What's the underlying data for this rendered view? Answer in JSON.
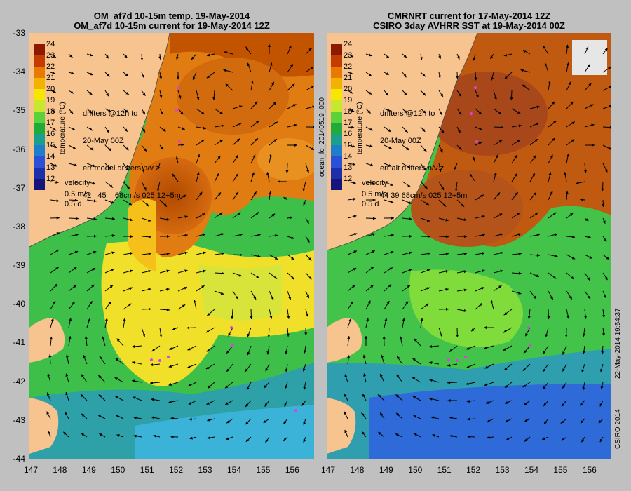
{
  "left_panel": {
    "title_line1": "OM_af7d 10-15m temp. 19-May-2014",
    "title_line2": "OM_af7d 10-15m current for 19-May-2014 12Z",
    "drifter_note_line1": "drifters @12h to",
    "drifter_note_line2": "20-May 00Z",
    "drifter_note_line3": "err model drifters n/v z",
    "drifter_note_line4": "42   45    68cm/s 025 12+5m"
  },
  "right_panel": {
    "title_line1": "CMRNRT current for 17-May-2014 12Z",
    "title_line2": "CSIRO 3day AVHRR SST at 19-May-2014 00Z",
    "drifter_note_line1": "drifters @12h to",
    "drifter_note_line2": "20-May 00Z",
    "drifter_note_line3": "err alt drifters n/v z",
    "drifter_note_line4": "44 39 68cm/s 025 12+5m"
  },
  "colorbar": {
    "title": "temperature (°C)",
    "labels": [
      "24",
      "23",
      "22",
      "21",
      "20",
      "19",
      "18",
      "17",
      "16",
      "15",
      "14",
      "13",
      "12"
    ],
    "colors": [
      "#8b1a00",
      "#c43c00",
      "#e87a00",
      "#f2b300",
      "#f6e600",
      "#c8e830",
      "#5cd23a",
      "#1faa3c",
      "#19a08c",
      "#1e7ecc",
      "#2a4fd8",
      "#1c2fa8",
      "#14147a"
    ]
  },
  "velocity_legend": {
    "label": "velocity",
    "speed": "0.5 m/s",
    "duration": "0.5 d"
  },
  "axes": {
    "x_ticks": [
      "147",
      "148",
      "149",
      "150",
      "151",
      "152",
      "153",
      "154",
      "155",
      "156"
    ],
    "y_ticks": [
      "-33",
      "-34",
      "-35",
      "-36",
      "-37",
      "-38",
      "-39",
      "-40",
      "-41",
      "-42",
      "-43",
      "-44"
    ]
  },
  "side_labels": {
    "right_edge": "22-May-2014 19:54:37",
    "copyright": "CSIRO 2014",
    "forecast_id": "ocean_fc_20140519_000"
  }
}
